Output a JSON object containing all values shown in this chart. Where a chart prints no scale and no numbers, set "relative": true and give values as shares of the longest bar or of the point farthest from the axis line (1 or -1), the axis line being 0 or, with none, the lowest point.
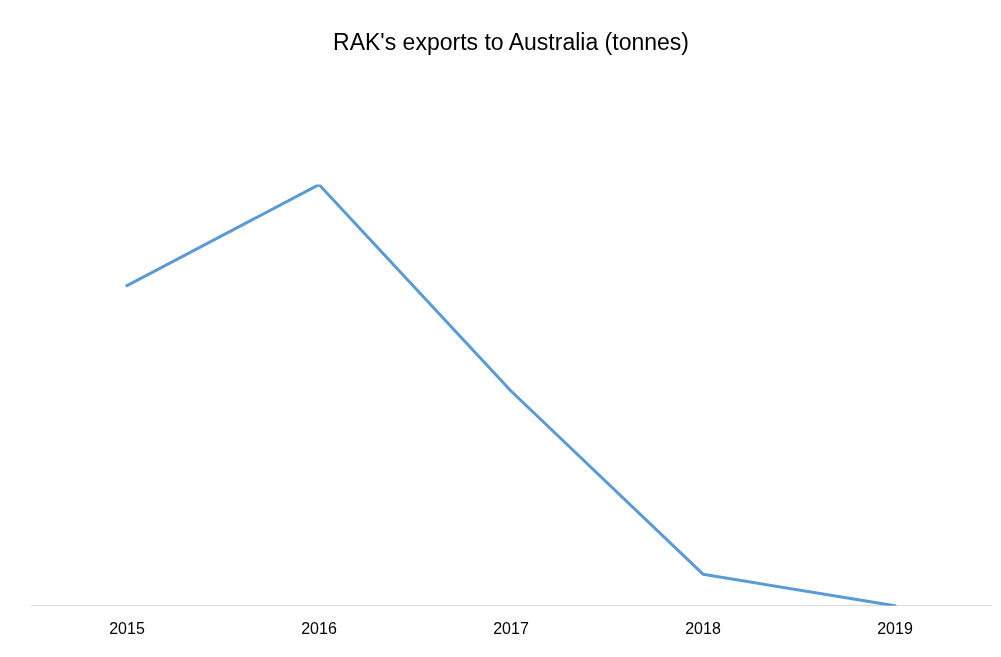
{
  "chart_data": {
    "type": "line",
    "title": "RAK's exports to Australia (tonnes)",
    "relative": true,
    "categories": [
      "2015",
      "2016",
      "2017",
      "2018",
      "2019"
    ],
    "series": [
      {
        "color": "#5b9bd5",
        "values": [
          0.76,
          1,
          0.51,
          0.075,
          0
        ]
      }
    ]
  }
}
